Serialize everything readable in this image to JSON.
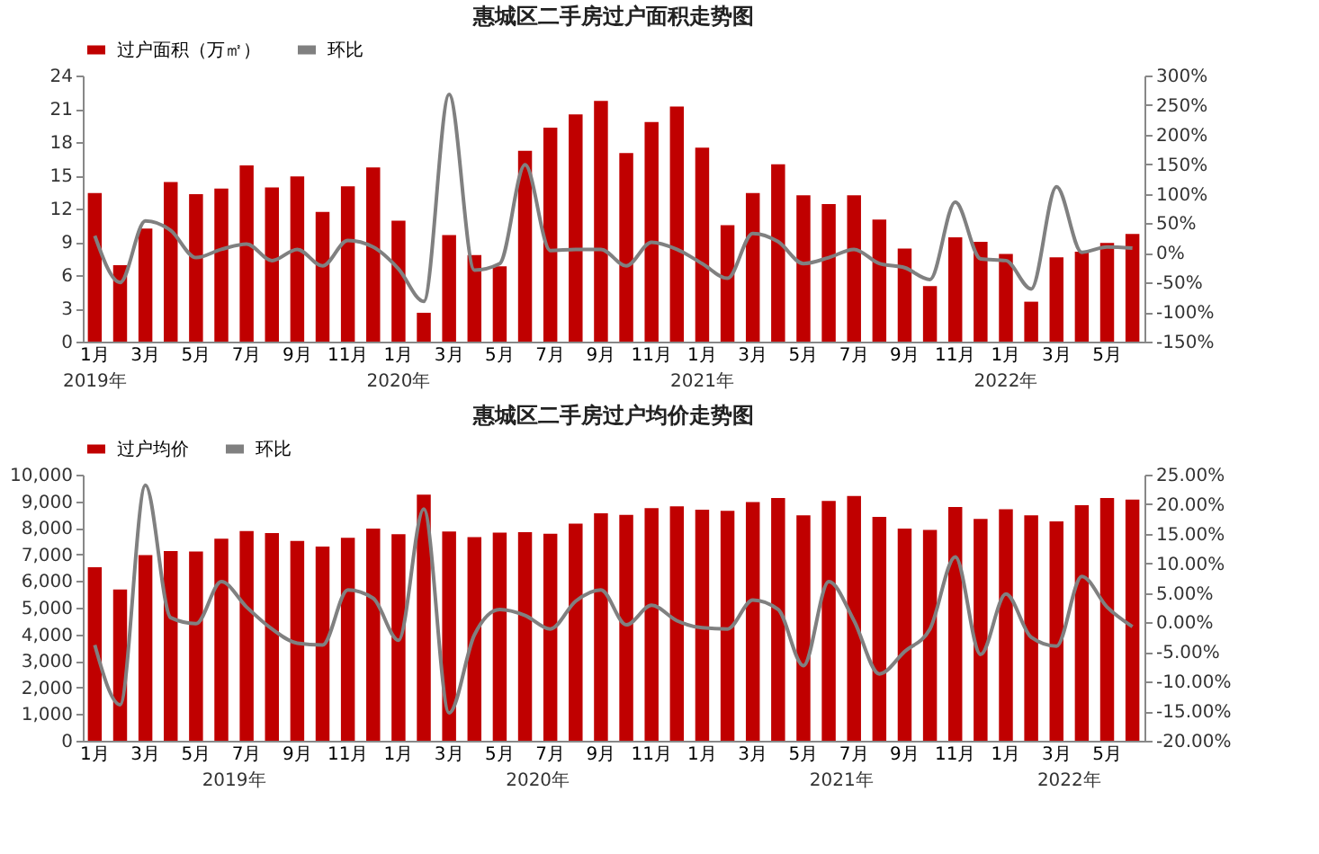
{
  "chart_data": [
    {
      "type": "bar",
      "title": "惠城区二手房过户面积走势图",
      "legend": "top",
      "categories": [
        "1月",
        null,
        "3月",
        null,
        "5月",
        null,
        "7月",
        null,
        "9月",
        null,
        "11月",
        null,
        "1月",
        null,
        "3月",
        null,
        "5月",
        null,
        "7月",
        null,
        "9月",
        null,
        "11月",
        null,
        "1月",
        null,
        "3月",
        null,
        "5月",
        null,
        "7月",
        null,
        "9月",
        null,
        "11月",
        null,
        "1月",
        null,
        "3月",
        null,
        "5月",
        null
      ],
      "series": [
        {
          "name": "过户面积（万㎡）",
          "color": "#c00000",
          "values": [
            13.4,
            6.9,
            10.2,
            14.4,
            13.3,
            13.8,
            15.9,
            13.9,
            14.9,
            11.7,
            14.0,
            15.7,
            10.9,
            2.6,
            9.6,
            7.8,
            6.8,
            17.2,
            19.3,
            20.5,
            21.7,
            17.0,
            19.8,
            21.2,
            17.5,
            10.5,
            13.4,
            16.0,
            13.2,
            12.4,
            13.2,
            11.0,
            8.4,
            5.0,
            9.4,
            9.0,
            7.9,
            3.6,
            7.6,
            8.1,
            8.9,
            9.7
          ]
        },
        {
          "name": "环比",
          "type": "line",
          "axis": "y2",
          "color": "#808080",
          "values": [
            29,
            -50,
            54,
            38,
            -8,
            6,
            15,
            -13,
            6,
            -22,
            21,
            10,
            -27,
            -82,
            268,
            -29,
            -18,
            149,
            4,
            6,
            6,
            -22,
            18,
            6,
            -18,
            -43,
            33,
            19,
            -18,
            -8,
            6,
            -18,
            -25,
            -45,
            86,
            -10,
            -13,
            -61,
            112,
            1,
            10,
            8
          ]
        }
      ],
      "ylim": [
        0,
        24
      ],
      "yticks": [
        0,
        3,
        6,
        9,
        12,
        15,
        18,
        21,
        24
      ],
      "y2lim": [
        -150,
        300
      ],
      "y2ticks": [
        {
          "value": -150,
          "label": "-150%"
        },
        {
          "value": -100,
          "label": "-100%"
        },
        {
          "value": -50,
          "label": "-50%"
        },
        {
          "value": 0,
          "label": "0%"
        },
        {
          "value": 50,
          "label": "50%"
        },
        {
          "value": 100,
          "label": "100%"
        },
        {
          "value": 150,
          "label": "150%"
        },
        {
          "value": 200,
          "label": "200%"
        },
        {
          "value": 250,
          "label": "250%"
        },
        {
          "value": 300,
          "label": "300%"
        }
      ],
      "annotations": [
        "2019年",
        "2020年",
        "2021年",
        "2022年"
      ]
    },
    {
      "type": "bar",
      "title": "惠城区二手房过户均价走势图",
      "legend": "top",
      "categories": [
        "1月",
        null,
        "3月",
        null,
        "5月",
        null,
        "7月",
        null,
        "9月",
        null,
        "11月",
        null,
        "1月",
        null,
        "3月",
        null,
        "5月",
        null,
        "7月",
        null,
        "9月",
        null,
        "11月",
        null,
        "1月",
        null,
        "3月",
        null,
        "5月",
        null,
        "7月",
        null,
        "9月",
        null,
        "11月",
        null,
        "1月",
        null,
        "3月",
        null,
        "5月",
        null
      ],
      "series": [
        {
          "name": "过户均价",
          "color": "#c00000",
          "values": [
            6520,
            5680,
            6980,
            7130,
            7110,
            7590,
            7880,
            7800,
            7510,
            7300,
            7630,
            7970,
            7760,
            9250,
            7860,
            7650,
            7820,
            7840,
            7780,
            8160,
            8550,
            8490,
            8740,
            8810,
            8680,
            8640,
            8970,
            9120,
            8470,
            9010,
            9200,
            8410,
            7970,
            7920,
            8780,
            8340,
            8700,
            8470,
            8240,
            8850,
            9120,
            9060
          ]
        },
        {
          "name": "环比",
          "type": "line",
          "axis": "y2",
          "color": "#808080",
          "values": [
            -3.8,
            -13.9,
            23.2,
            0.8,
            -0.2,
            6.9,
            2.6,
            -1.1,
            -3.5,
            -3.8,
            5.5,
            4.1,
            -3.0,
            19.2,
            -15.3,
            -2.1,
            2.2,
            1.2,
            -1.1,
            3.6,
            5.5,
            -0.4,
            2.9,
            0.3,
            -0.9,
            -1.1,
            3.8,
            2.2,
            -7.3,
            6.9,
            0.3,
            -8.7,
            -4.9,
            -1.1,
            11.1,
            -5.4,
            4.8,
            -2.5,
            -4.0,
            7.8,
            2.6,
            -0.7
          ]
        }
      ],
      "ylim": [
        0,
        10000
      ],
      "yticks": [
        0,
        {
          "value": 1000,
          "label": "1,000"
        },
        {
          "value": 2000,
          "label": "2,000"
        },
        {
          "value": 3000,
          "label": "3,000"
        },
        {
          "value": 4000,
          "label": "4,000"
        },
        {
          "value": 5000,
          "label": "5,000"
        },
        {
          "value": 6000,
          "label": "6,000"
        },
        {
          "value": 7000,
          "label": "7,000"
        },
        {
          "value": 8000,
          "label": "8,000"
        },
        {
          "value": 9000,
          "label": "9,000"
        },
        {
          "value": 10000,
          "label": "10,000"
        }
      ],
      "y2lim": [
        -20,
        25
      ],
      "y2ticks": [
        {
          "value": -20,
          "label": "-20.00%"
        },
        {
          "value": -15,
          "label": "-15.00%"
        },
        {
          "value": -10,
          "label": "-10.00%"
        },
        {
          "value": -5,
          "label": "-5.00%"
        },
        {
          "value": 0,
          "label": "0.00%"
        },
        {
          "value": 5,
          "label": "5.00%"
        },
        {
          "value": 10,
          "label": "10.00%"
        },
        {
          "value": 15,
          "label": "15.00%"
        },
        {
          "value": 20,
          "label": "20.00%"
        },
        {
          "value": 25,
          "label": "25.00%"
        }
      ],
      "annotations": [
        "2019年",
        "2020年",
        "2021年",
        "2022年"
      ]
    }
  ]
}
